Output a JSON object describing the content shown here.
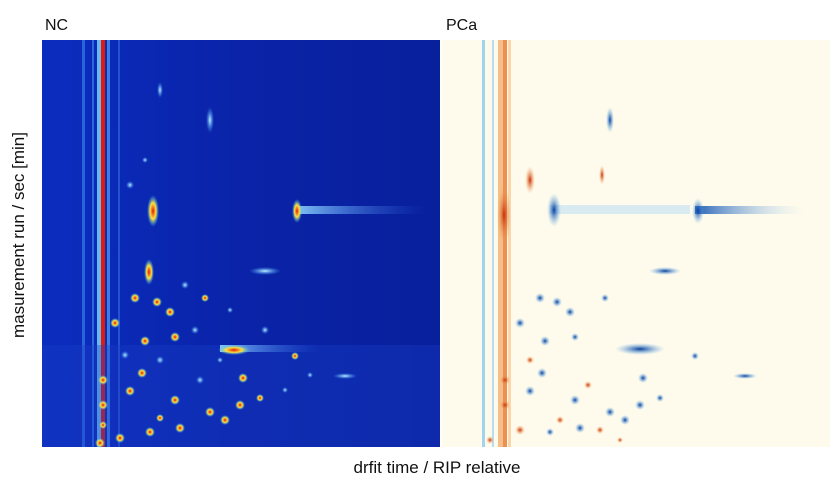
{
  "panels": [
    {
      "label": "NC"
    },
    {
      "label": "PCa"
    }
  ],
  "x_label": "drfit time / RIP relative",
  "y_label": "masurement run / sec [min]"
}
